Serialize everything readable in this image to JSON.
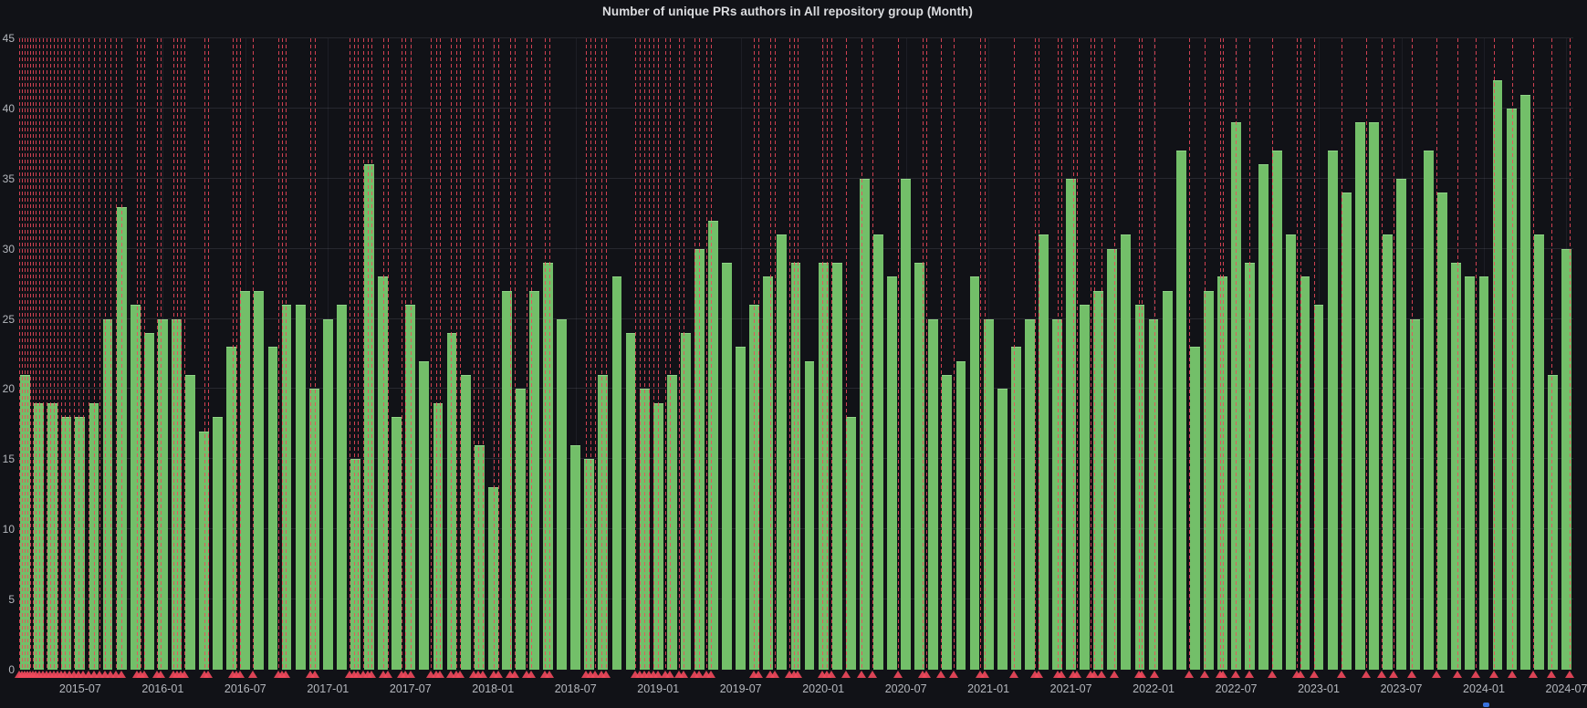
{
  "panel": {
    "title": "Number of unique PRs authors in All repository group (Month)"
  },
  "chart_data": {
    "type": "bar",
    "title": "Number of unique PRs authors in All repository group (Month)",
    "xlabel": "",
    "ylabel": "",
    "ylim": [
      0,
      45
    ],
    "grid": true,
    "legend_position": "none",
    "bar_count": 113,
    "x_range_months": "2015-03 to 2024-07",
    "values": [
      21,
      19,
      19,
      18,
      18,
      19,
      25,
      33,
      26,
      24,
      25,
      25,
      21,
      17,
      18,
      23,
      27,
      27,
      23,
      26,
      26,
      20,
      25,
      26,
      15,
      36,
      28,
      18,
      26,
      22,
      19,
      24,
      21,
      16,
      13,
      27,
      20,
      27,
      29,
      25,
      16,
      15,
      21,
      28,
      24,
      20,
      19,
      21,
      24,
      30,
      32,
      29,
      23,
      26,
      28,
      31,
      29,
      22,
      29,
      29,
      18,
      35,
      31,
      28,
      35,
      29,
      25,
      21,
      22,
      28,
      25,
      20,
      23,
      25,
      31,
      25,
      35,
      26,
      27,
      30,
      31,
      26,
      25,
      27,
      37,
      23,
      27,
      28,
      39,
      29,
      36,
      37,
      31,
      28,
      26,
      37,
      34,
      39,
      39,
      31,
      35,
      25,
      37,
      34,
      29,
      28,
      28,
      42,
      40,
      41,
      31,
      21,
      30
    ],
    "yticks": [
      0,
      5,
      10,
      15,
      20,
      25,
      30,
      35,
      40,
      45
    ],
    "xticks": {
      "labels": [
        "2015-07",
        "2016-01",
        "2016-07",
        "2017-01",
        "2017-07",
        "2018-01",
        "2018-07",
        "2019-01",
        "2019-07",
        "2020-01",
        "2020-07",
        "2021-01",
        "2021-07",
        "2022-01",
        "2022-07",
        "2023-01",
        "2023-07",
        "2024-01",
        "2024-07"
      ],
      "first_bar_index": 4,
      "every": 6
    },
    "annotations_pct": [
      0.06,
      0.23,
      0.41,
      0.59,
      0.76,
      0.94,
      1.11,
      1.35,
      1.58,
      1.82,
      2.05,
      2.29,
      2.52,
      2.75,
      2.99,
      3.28,
      3.58,
      3.87,
      4.16,
      4.51,
      4.87,
      5.22,
      5.57,
      5.92,
      6.27,
      6.62,
      7.62,
      7.85,
      8.09,
      8.91,
      9.14,
      9.96,
      10.2,
      10.43,
      10.67,
      11.96,
      12.19,
      13.77,
      14.01,
      14.24,
      15.06,
      16.71,
      16.94,
      17.17,
      18.76,
      19.05,
      21.28,
      21.57,
      21.86,
      22.16,
      22.45,
      22.74,
      23.45,
      23.74,
      24.62,
      24.91,
      25.21,
      26.55,
      26.85,
      27.14,
      27.84,
      28.14,
      28.43,
      29.31,
      29.6,
      29.89,
      30.6,
      30.89,
      31.65,
      31.95,
      32.71,
      33.0,
      33.88,
      34.17,
      36.52,
      36.81,
      37.1,
      37.51,
      37.81,
      39.68,
      39.98,
      40.27,
      40.56,
      40.86,
      41.15,
      41.62,
      41.91,
      42.5,
      42.79,
      43.49,
      43.79,
      44.26,
      44.55,
      47.3,
      47.6,
      48.36,
      48.65,
      49.59,
      49.88,
      50.12,
      51.7,
      51.99,
      52.29,
      53.22,
      54.22,
      54.92,
      56.56,
      58.15,
      58.38,
      59.32,
      60.14,
      61.84,
      62.13,
      64.01,
      65.36,
      65.59,
      66.82,
      67.06,
      67.82,
      68.05,
      68.93,
      69.17,
      69.64,
      70.46,
      72.04,
      72.27,
      73.09,
      75.32,
      76.32,
      77.26,
      77.49,
      78.31,
      79.19,
      80.66,
      82.24,
      82.47,
      83.35,
      85.11,
      86.69,
      87.69,
      88.45,
      89.62,
      91.21,
      92.56,
      93.73,
      94.9,
      96.07,
      97.42,
      98.59,
      99.77
    ],
    "colors": {
      "background": "#111217",
      "bar": "#73bf69",
      "bar_border": "#8fd486",
      "annotation": "#f2495c",
      "axis_text": "#b4b7bd",
      "title_text": "#dcdde0",
      "legend_dot": "#3871dc"
    }
  }
}
